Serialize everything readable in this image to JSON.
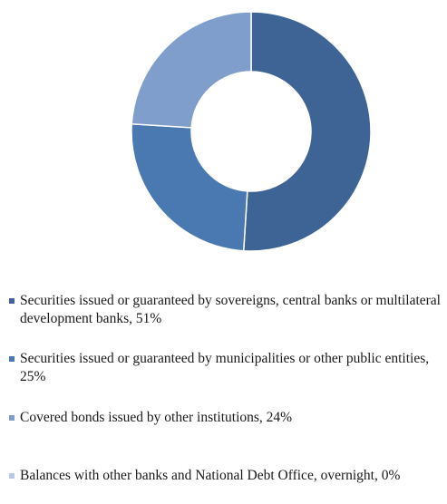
{
  "chart_data": {
    "type": "pie",
    "donut": true,
    "title": "",
    "legend_position": "bottom",
    "slices": [
      {
        "label": "Securities issued or guaranteed by sovereigns, central banks or multilateral development banks, 51%",
        "value": 51,
        "color": "#3d6495"
      },
      {
        "label": "Securities issued or guaranteed by municipalities or other public entities, 25%",
        "value": 25,
        "color": "#4a79b2"
      },
      {
        "label": "Covered bonds issued by other institutions, 24%",
        "value": 24,
        "color": "#7f9ecb"
      },
      {
        "label": "Balances with other banks and National Debt Office, overnight, 0%",
        "value": 0,
        "color": "#b8c9e4"
      }
    ]
  }
}
